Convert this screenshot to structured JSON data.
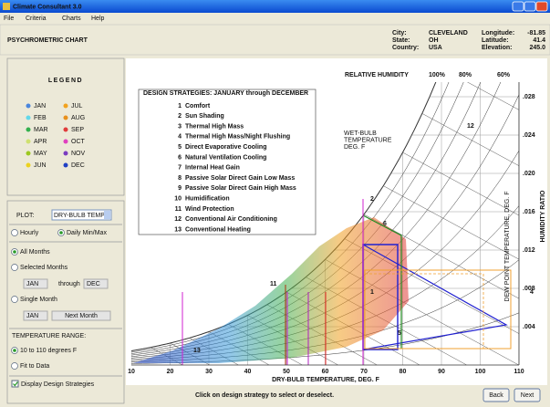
{
  "window": {
    "title": "Climate Consultant 3.0",
    "menu": [
      "File",
      "Criteria",
      "Charts",
      "Help"
    ]
  },
  "header": {
    "title": "PSYCHROMETRIC CHART",
    "location": [
      {
        "label": "City:",
        "value": "CLEVELAND"
      },
      {
        "label": "State:",
        "value": "OH"
      },
      {
        "label": "Country:",
        "value": "USA"
      }
    ],
    "coordinates": [
      {
        "label": "Longitude:",
        "value": "-81.85"
      },
      {
        "label": "Latitude:",
        "value": "41.4"
      },
      {
        "label": "Elevation:",
        "value": "245.0"
      }
    ]
  },
  "legend": {
    "title": "LEGEND",
    "months": [
      {
        "name": "JAN",
        "color": "#4a86dc"
      },
      {
        "name": "JUL",
        "color": "#f2a21e"
      },
      {
        "name": "FEB",
        "color": "#62d8ea"
      },
      {
        "name": "AUG",
        "color": "#e8901c"
      },
      {
        "name": "MAR",
        "color": "#34b04e"
      },
      {
        "name": "SEP",
        "color": "#e03c3c"
      },
      {
        "name": "APR",
        "color": "#cfe070"
      },
      {
        "name": "OCT",
        "color": "#e040c0"
      },
      {
        "name": "MAY",
        "color": "#9cc820"
      },
      {
        "name": "NOV",
        "color": "#7a3cc0"
      },
      {
        "name": "JUN",
        "color": "#ecd21e"
      },
      {
        "name": "DEC",
        "color": "#2040c4"
      }
    ]
  },
  "controls": {
    "plot_label": "PLOT:",
    "plot_value": "DRY-BULB TEMP",
    "hourly": "Hourly",
    "daily": "Daily Min/Max",
    "all_months": "All Months",
    "selected_months": "Selected Months",
    "from_month": "JAN",
    "through": "through",
    "to_month": "DEC",
    "single_month": "Single Month",
    "single_value": "JAN",
    "next_month": "Next Month",
    "temp_range_title": "TEMPERATURE RANGE:",
    "temp_range": "10 to 110 degrees F",
    "fit_to_data": "Fit to Data",
    "display_strategies": "Display Design Strategies"
  },
  "chart": {
    "rh_title": "RELATIVE HUMIDITY",
    "rh_labels": [
      "100%",
      "80%",
      "60%"
    ],
    "strategies_title": "DESIGN STRATEGIES: JANUARY through DECEMBER",
    "strategies": [
      {
        "number": 1,
        "name": "Comfort",
        "color": "#2020d0"
      },
      {
        "number": 2,
        "name": "Sun Shading",
        "color": "#d020a0"
      },
      {
        "number": 3,
        "name": "Thermal High Mass",
        "color": "#f0a030"
      },
      {
        "number": 4,
        "name": "Thermal High Mass/Night Flushing",
        "color": "#f0a030"
      },
      {
        "number": 5,
        "name": "Direct Evaporative Cooling",
        "color": "#2020d0"
      },
      {
        "number": 6,
        "name": "Natural Ventilation Cooling",
        "color": "#208a20"
      },
      {
        "number": 7,
        "name": "Internal Heat Gain",
        "color": "#e02020"
      },
      {
        "number": 8,
        "name": "Passive Solar Direct Gain Low Mass",
        "color": "#d020d0"
      },
      {
        "number": 9,
        "name": "Passive Solar Direct Gain High Mass",
        "color": "#b020c0"
      },
      {
        "number": 10,
        "name": "Humidification",
        "color": "#20c0d0"
      },
      {
        "number": 11,
        "name": "Wind Protection",
        "color": "#b03010"
      },
      {
        "number": 12,
        "name": "Conventional Air Conditioning",
        "color": "#000000"
      },
      {
        "number": 13,
        "name": "Conventional Heating",
        "color": "#000000"
      }
    ],
    "xlim": [
      10,
      110
    ],
    "xticks": [
      10,
      20,
      30,
      40,
      50,
      60,
      70,
      80,
      90,
      100,
      110
    ],
    "y2lim": [
      0,
      0.03
    ],
    "y2ticks": [
      {
        "value": 0.028,
        "label": ".028"
      },
      {
        "value": 0.024,
        "label": ".024"
      },
      {
        "value": 0.02,
        "label": ".020"
      },
      {
        "value": 0.016,
        "label": ".016"
      },
      {
        "value": 0.012,
        "label": ".012"
      },
      {
        "value": 0.008,
        "label": ".008"
      },
      {
        "value": 0.004,
        "label": ".004"
      }
    ],
    "x_label": "DRY-BULB TEMPERATURE, DEG. F",
    "y2_label": "HUMIDITY RATIO",
    "wet_bulb_label": [
      "WET-BULB",
      "TEMPERATURE",
      "DEG. F"
    ],
    "dew_point_label": "DEW POINT TEMPERATURE, DEG. F",
    "zone_labels": [
      "12",
      "2",
      "6",
      "11",
      "1",
      "4",
      "5",
      "13"
    ]
  },
  "footer": {
    "hint": "Click on design strategy to select or deselect.",
    "back": "Back",
    "next": "Next"
  }
}
